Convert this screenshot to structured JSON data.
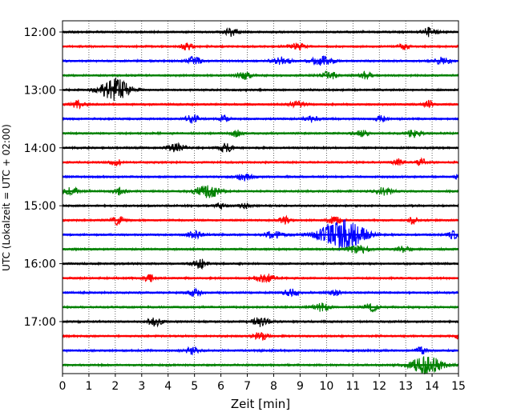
{
  "chart_data": {
    "type": "line",
    "chart_kind": "seismogram helicorder",
    "xlabel": "Zeit  [min]",
    "ylabel": "UTC (Lokalzeit = UTC + 02:00)",
    "xlim": [
      0,
      15
    ],
    "x_ticks": [
      "0",
      "1",
      "2",
      "3",
      "4",
      "5",
      "6",
      "7",
      "8",
      "9",
      "10",
      "11",
      "12",
      "13",
      "14",
      "15"
    ],
    "y_tick_labels": [
      "12:00",
      "13:00",
      "14:00",
      "15:00",
      "16:00",
      "17:00"
    ],
    "grid": "vertical dotted lines at each minute",
    "trace_minutes": 15,
    "colors": [
      "#000000",
      "#ff0000",
      "#0000ff",
      "#008000"
    ],
    "series": [
      {
        "start": "12:00",
        "color": "#000000",
        "events": [
          [
            6.4,
            0.4,
            0.2
          ],
          [
            13.9,
            0.4,
            0.22
          ]
        ]
      },
      {
        "start": "12:15",
        "color": "#ff0000",
        "events": [
          [
            4.7,
            0.3,
            0.18
          ],
          [
            8.9,
            0.4,
            0.16
          ],
          [
            12.9,
            0.3,
            0.15
          ]
        ]
      },
      {
        "start": "12:30",
        "color": "#0000ff",
        "events": [
          [
            5.0,
            0.4,
            0.2
          ],
          [
            8.3,
            0.5,
            0.18
          ],
          [
            9.8,
            0.6,
            0.22
          ],
          [
            14.4,
            0.4,
            0.17
          ]
        ]
      },
      {
        "start": "12:45",
        "color": "#008000",
        "events": [
          [
            6.9,
            0.4,
            0.18
          ],
          [
            10.1,
            0.4,
            0.2
          ],
          [
            11.5,
            0.3,
            0.17
          ]
        ]
      },
      {
        "start": "13:00",
        "color": "#000000",
        "events": [
          [
            2.0,
            0.8,
            0.55
          ]
        ]
      },
      {
        "start": "13:15",
        "color": "#ff0000",
        "events": [
          [
            0.6,
            0.4,
            0.18
          ],
          [
            8.9,
            0.4,
            0.17
          ],
          [
            13.9,
            0.3,
            0.18
          ]
        ]
      },
      {
        "start": "13:30",
        "color": "#0000ff",
        "events": [
          [
            4.9,
            0.4,
            0.18
          ],
          [
            6.1,
            0.3,
            0.15
          ],
          [
            9.4,
            0.4,
            0.15
          ],
          [
            12.1,
            0.3,
            0.15
          ]
        ]
      },
      {
        "start": "13:45",
        "color": "#008000",
        "events": [
          [
            6.6,
            0.3,
            0.15
          ],
          [
            11.3,
            0.4,
            0.16
          ],
          [
            13.3,
            0.4,
            0.18
          ]
        ]
      },
      {
        "start": "14:00",
        "color": "#000000",
        "events": [
          [
            4.3,
            0.5,
            0.18
          ],
          [
            6.2,
            0.4,
            0.2
          ]
        ]
      },
      {
        "start": "14:15",
        "color": "#ff0000",
        "events": [
          [
            2.0,
            0.3,
            0.17
          ],
          [
            12.7,
            0.3,
            0.15
          ],
          [
            13.6,
            0.3,
            0.16
          ]
        ]
      },
      {
        "start": "14:30",
        "color": "#0000ff",
        "events": [
          [
            6.9,
            0.5,
            0.18
          ],
          [
            15.0,
            0.2,
            0.18
          ]
        ]
      },
      {
        "start": "14:45",
        "color": "#008000",
        "events": [
          [
            0.3,
            0.4,
            0.2
          ],
          [
            2.2,
            0.3,
            0.18
          ],
          [
            5.5,
            0.7,
            0.3
          ],
          [
            12.2,
            0.5,
            0.18
          ]
        ]
      },
      {
        "start": "15:00",
        "color": "#000000",
        "events": [
          [
            6.0,
            0.3,
            0.15
          ],
          [
            6.9,
            0.3,
            0.12
          ]
        ]
      },
      {
        "start": "15:15",
        "color": "#ff0000",
        "events": [
          [
            2.1,
            0.4,
            0.2
          ],
          [
            8.4,
            0.3,
            0.18
          ],
          [
            10.3,
            0.4,
            0.17
          ],
          [
            13.3,
            0.3,
            0.16
          ]
        ]
      },
      {
        "start": "15:30",
        "color": "#0000ff",
        "events": [
          [
            5.0,
            0.4,
            0.17
          ],
          [
            8.0,
            0.5,
            0.16
          ],
          [
            10.6,
            1.2,
            0.75
          ],
          [
            14.8,
            0.3,
            0.17
          ]
        ]
      },
      {
        "start": "15:45",
        "color": "#008000",
        "events": [
          [
            11.2,
            0.6,
            0.18
          ],
          [
            12.9,
            0.4,
            0.16
          ]
        ]
      },
      {
        "start": "16:00",
        "color": "#000000",
        "events": [
          [
            5.2,
            0.4,
            0.22
          ]
        ]
      },
      {
        "start": "16:15",
        "color": "#ff0000",
        "events": [
          [
            3.3,
            0.3,
            0.18
          ],
          [
            7.7,
            0.5,
            0.22
          ]
        ]
      },
      {
        "start": "16:30",
        "color": "#0000ff",
        "events": [
          [
            5.0,
            0.4,
            0.18
          ],
          [
            8.7,
            0.4,
            0.17
          ],
          [
            10.3,
            0.3,
            0.15
          ]
        ]
      },
      {
        "start": "16:45",
        "color": "#008000",
        "events": [
          [
            9.8,
            0.5,
            0.2
          ],
          [
            11.7,
            0.4,
            0.17
          ]
        ]
      },
      {
        "start": "17:00",
        "color": "#000000",
        "events": [
          [
            3.5,
            0.4,
            0.2
          ],
          [
            7.5,
            0.5,
            0.22
          ]
        ]
      },
      {
        "start": "17:15",
        "color": "#ff0000",
        "events": [
          [
            7.5,
            0.4,
            0.18
          ],
          [
            15.0,
            0.2,
            0.2
          ]
        ]
      },
      {
        "start": "17:30",
        "color": "#0000ff",
        "events": [
          [
            4.9,
            0.4,
            0.18
          ],
          [
            13.6,
            0.3,
            0.17
          ]
        ]
      },
      {
        "start": "17:45",
        "color": "#008000",
        "events": [
          [
            13.8,
            0.9,
            0.4
          ]
        ]
      }
    ]
  }
}
